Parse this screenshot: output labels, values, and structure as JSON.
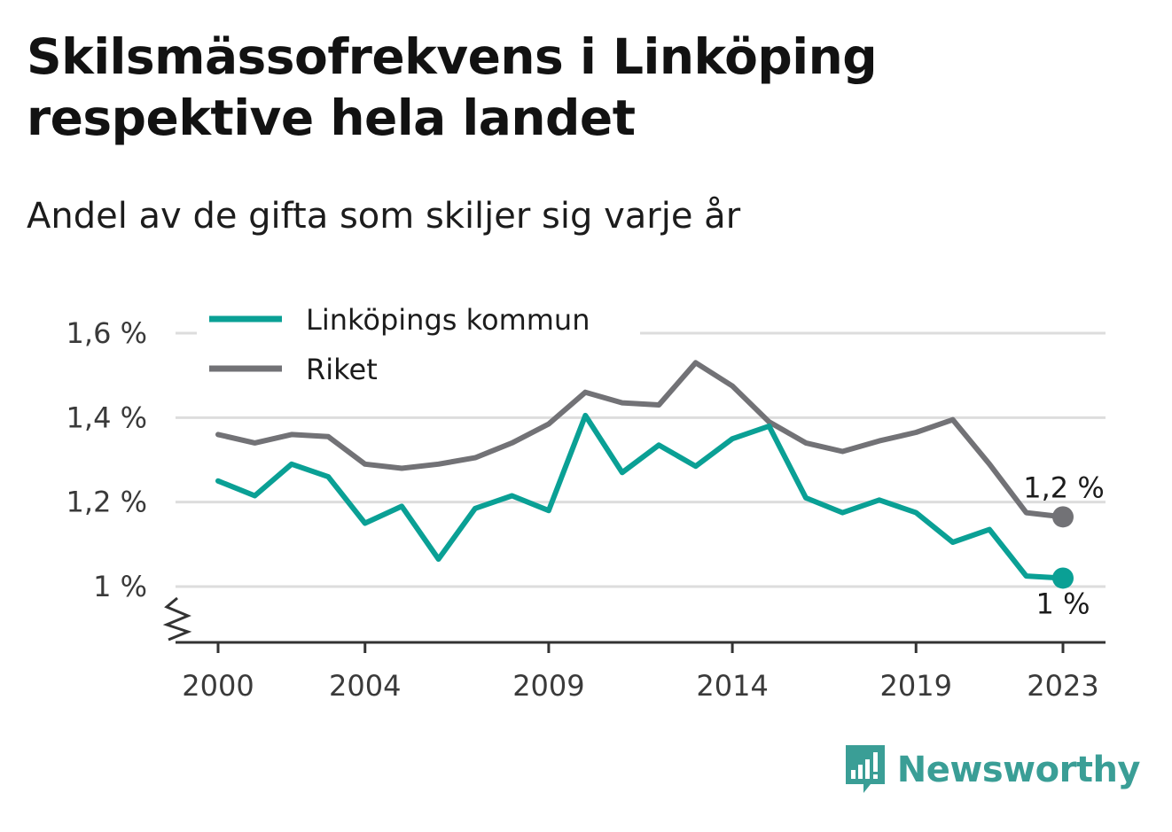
{
  "header": {
    "title_line1": "Skilsmässofrekvens i Linköping",
    "title_line2": "respektive hela landet",
    "subtitle": "Andel av de gifta som skiljer sig varje år"
  },
  "brand": {
    "name": "Newsworthy",
    "icon": "newsworthy-logo-icon",
    "color": "#3a9e96"
  },
  "colors": {
    "linkoping": "#0aa095",
    "riket": "#727276",
    "grid": "#dddddd",
    "axis": "#333333"
  },
  "chart_data": {
    "type": "line",
    "title": "Skilsmässofrekvens i Linköping respektive hela landet",
    "subtitle": "Andel av de gifta som skiljer sig varje år",
    "xlabel": "",
    "ylabel": "",
    "x": [
      2000,
      2001,
      2002,
      2003,
      2004,
      2005,
      2006,
      2007,
      2008,
      2009,
      2010,
      2011,
      2012,
      2013,
      2014,
      2015,
      2016,
      2017,
      2018,
      2019,
      2020,
      2021,
      2022,
      2023
    ],
    "x_ticks": [
      2000,
      2004,
      2009,
      2014,
      2019,
      2023
    ],
    "x_tick_labels": [
      "2000",
      "2004",
      "2009",
      "2014",
      "2019",
      "2023"
    ],
    "y_ticks": [
      1.0,
      1.2,
      1.4,
      1.6
    ],
    "y_tick_labels": [
      "1 %",
      "1,2 %",
      "1,4 %",
      "1,6 %"
    ],
    "ylim": [
      0.86,
      1.6
    ],
    "grid": true,
    "axis_break": true,
    "legend_position": "top-left",
    "series": [
      {
        "name": "Linköpings kommun",
        "color": "#0aa095",
        "values": [
          1.25,
          1.215,
          1.29,
          1.26,
          1.15,
          1.19,
          1.065,
          1.185,
          1.215,
          1.18,
          1.405,
          1.27,
          1.335,
          1.285,
          1.35,
          1.38,
          1.21,
          1.175,
          1.205,
          1.175,
          1.105,
          1.135,
          1.025,
          1.02
        ],
        "end_label": "1 %"
      },
      {
        "name": "Riket",
        "color": "#727276",
        "values": [
          1.36,
          1.34,
          1.36,
          1.355,
          1.29,
          1.28,
          1.29,
          1.305,
          1.34,
          1.385,
          1.46,
          1.435,
          1.43,
          1.53,
          1.475,
          1.39,
          1.34,
          1.32,
          1.345,
          1.365,
          1.395,
          1.29,
          1.175,
          1.165
        ],
        "end_label": "1,2 %"
      }
    ]
  }
}
